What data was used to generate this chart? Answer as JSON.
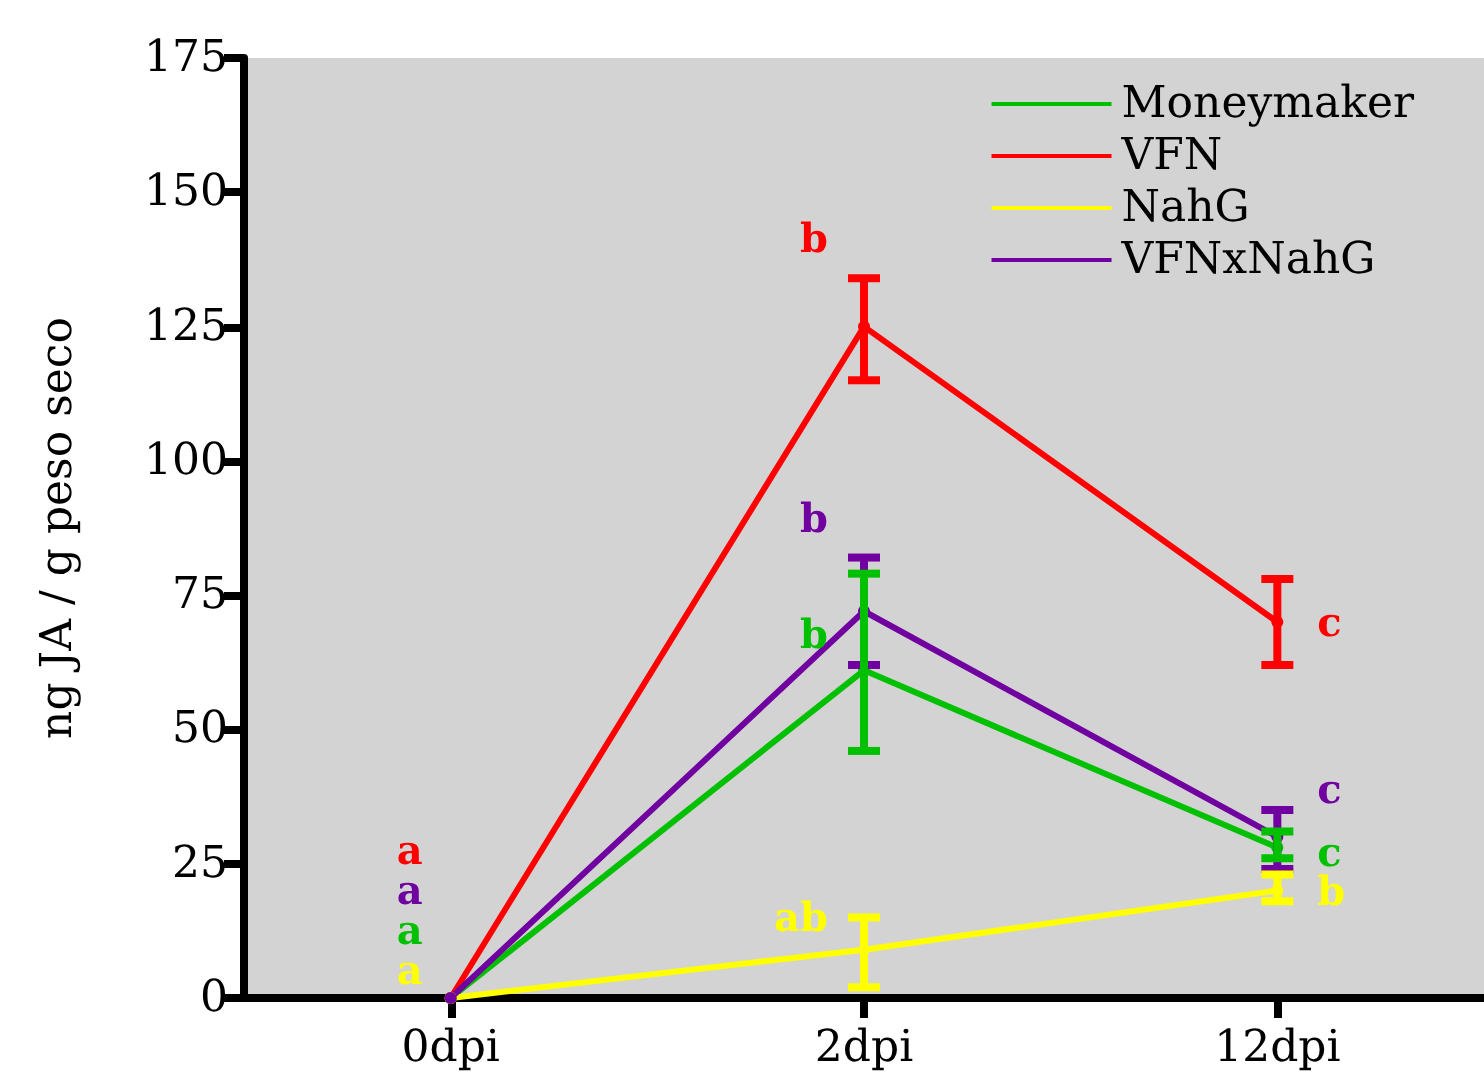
{
  "chart_data": {
    "type": "line",
    "ylabel": "ng JA / g peso seco",
    "categories": [
      "0dpi",
      "2dpi",
      "12dpi"
    ],
    "ylim": [
      0,
      175
    ],
    "yticks": [
      0,
      25,
      50,
      75,
      100,
      125,
      150,
      175
    ],
    "grid": false,
    "legend": "top right",
    "marker": "circle",
    "line_style": "solid",
    "series": [
      {
        "name": "Moneymaker",
        "color": "#00c000",
        "values": [
          0,
          61,
          28
        ],
        "errors": [
          null,
          [
            46,
            79
          ],
          [
            26,
            31
          ]
        ],
        "value_labels": [
          "a",
          "b",
          "c"
        ]
      },
      {
        "name": "VFN",
        "color": "#ff0000",
        "values": [
          0,
          125,
          70
        ],
        "errors": [
          null,
          [
            115,
            134
          ],
          [
            62,
            78
          ]
        ],
        "value_labels": [
          "a",
          "b",
          "c"
        ]
      },
      {
        "name": "NahG",
        "color": "#ffff00",
        "values": [
          0,
          9,
          20
        ],
        "errors": [
          null,
          [
            2,
            15
          ],
          [
            18,
            23
          ]
        ],
        "value_labels": [
          "a",
          "ab",
          "b"
        ]
      },
      {
        "name": "VFNxNahG",
        "color": "#7000a0",
        "values": [
          0,
          72,
          30
        ],
        "errors": [
          null,
          [
            62,
            82
          ],
          [
            24,
            35
          ]
        ],
        "value_labels": [
          "a",
          "b",
          "c"
        ]
      }
    ]
  }
}
